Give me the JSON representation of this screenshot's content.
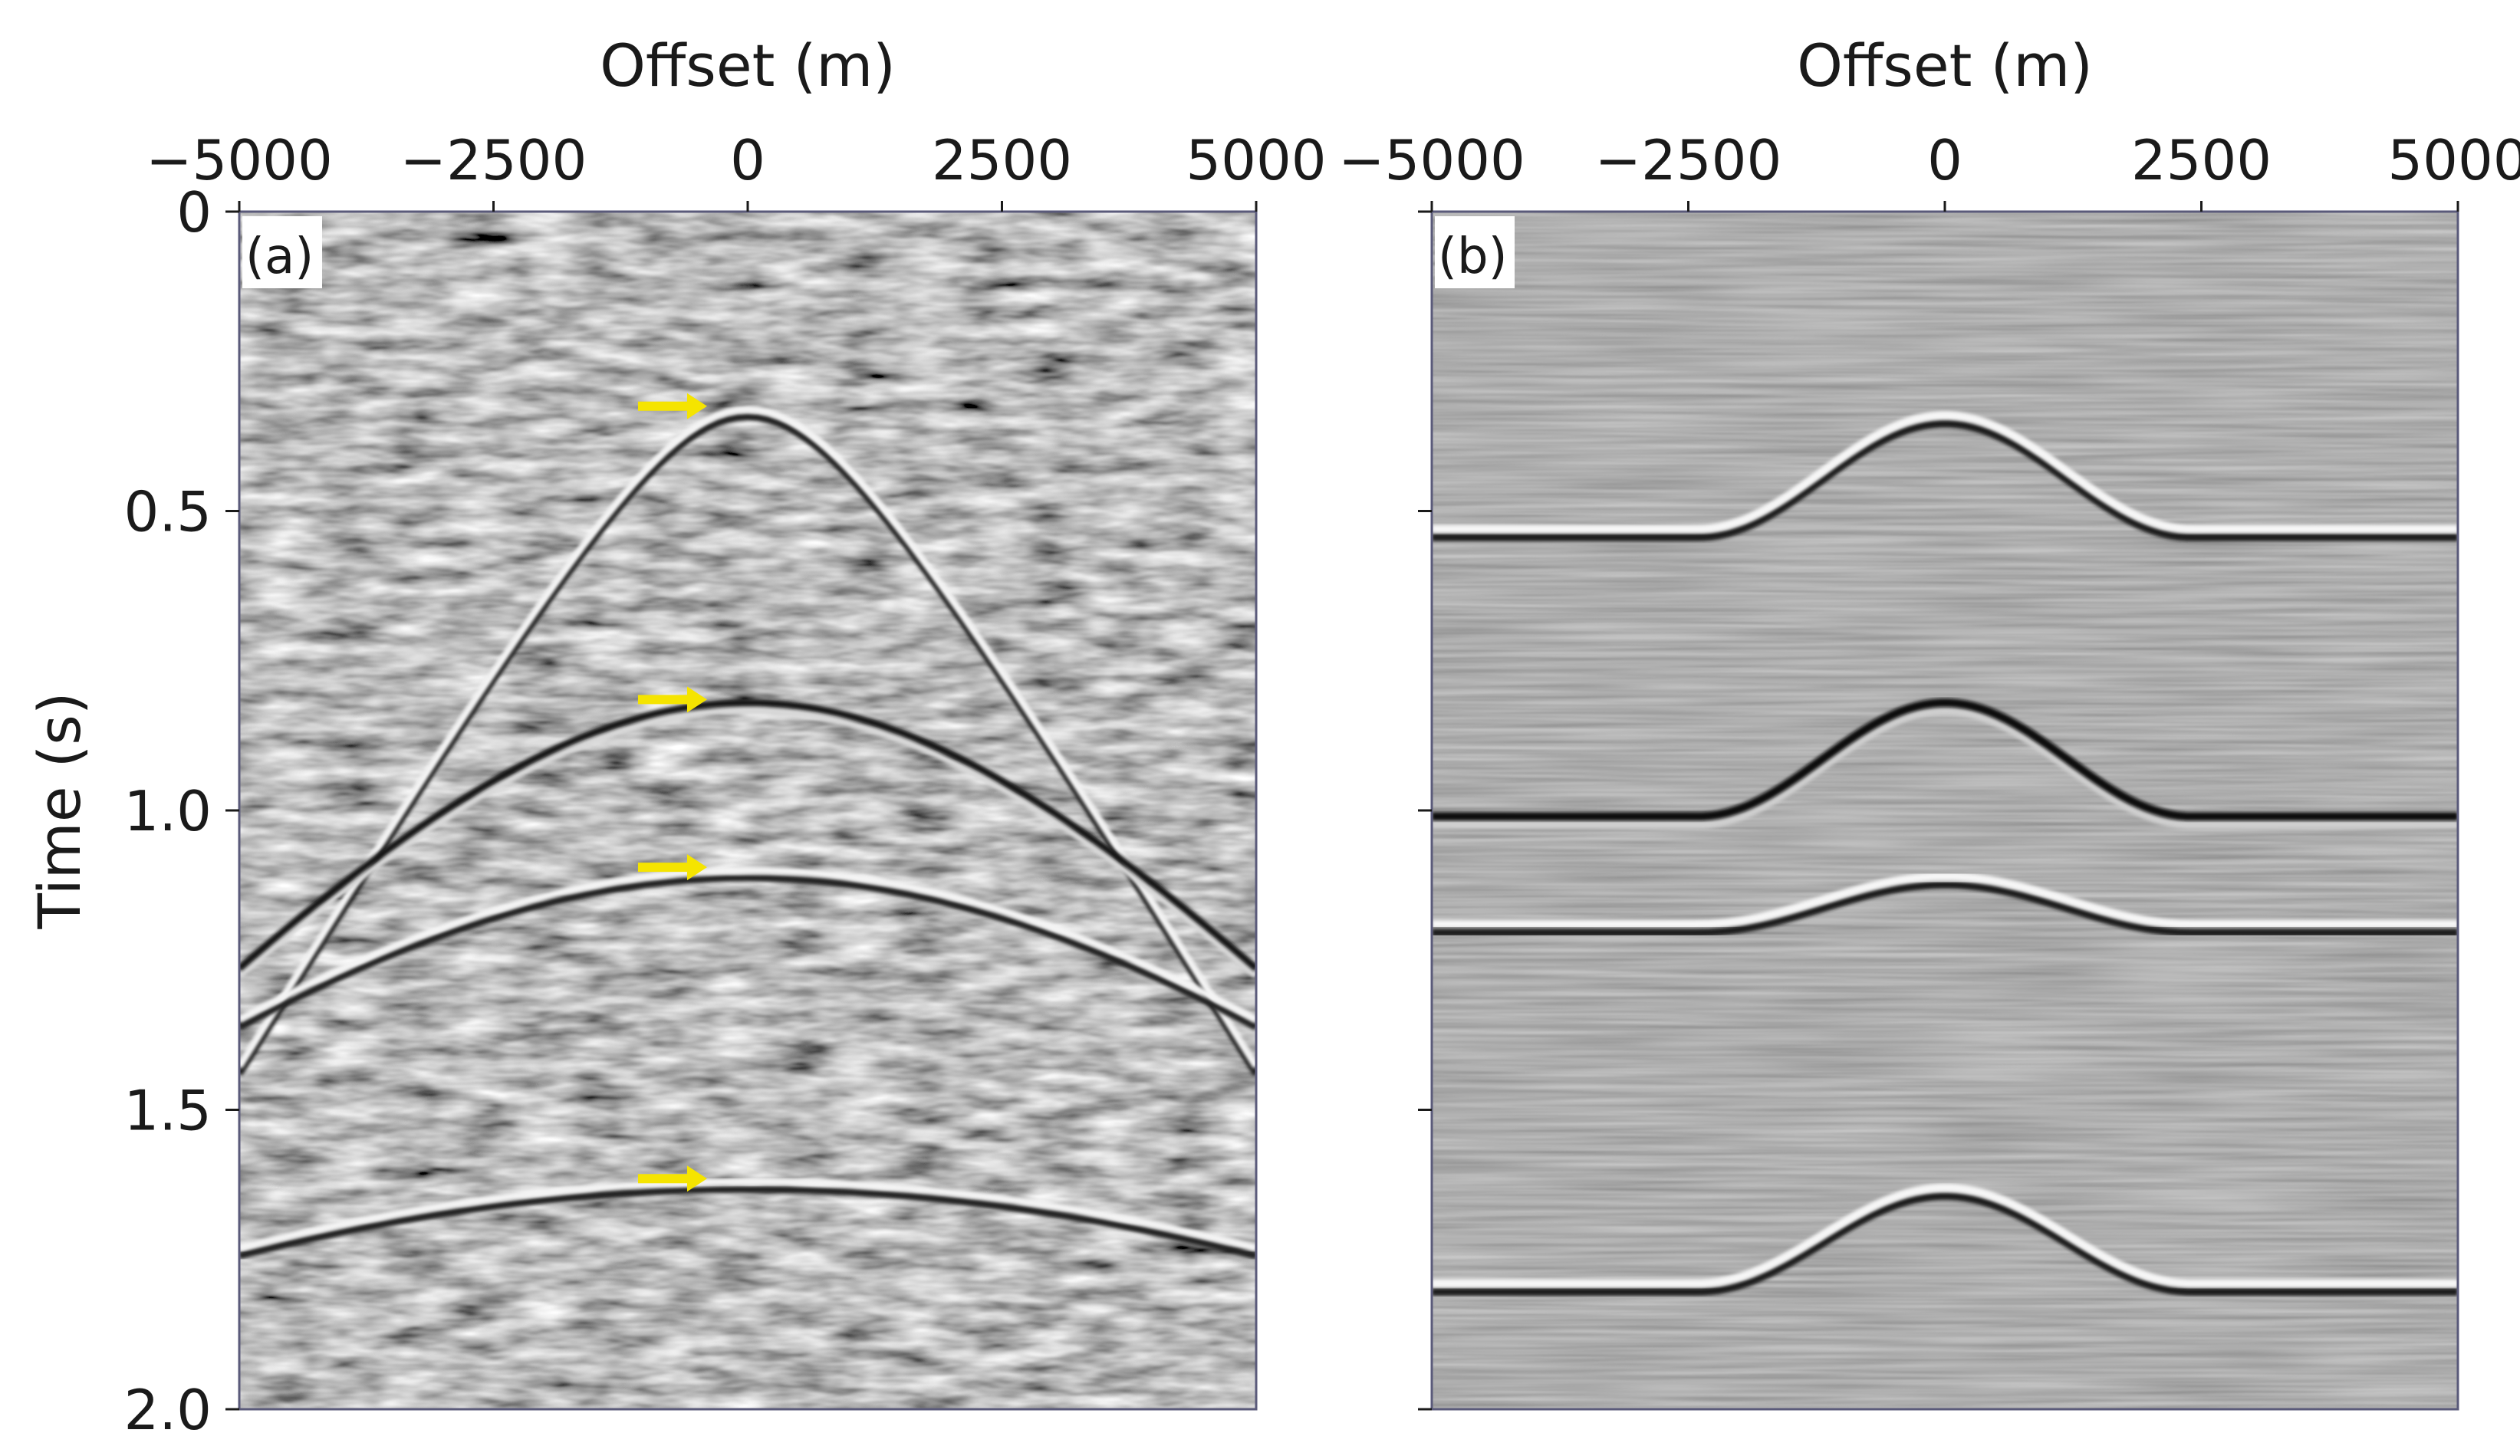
{
  "chart_data": [
    {
      "type": "heatmap",
      "panel_label": "(a)",
      "xlabel": "Offset (m)",
      "ylabel": "Time (s)",
      "x_axis_position": "top",
      "xlim": [
        -5000,
        5000
      ],
      "ylim": [
        0,
        2.0
      ],
      "y_inverted": true,
      "xticks": [
        -5000,
        -2500,
        0,
        2500,
        5000
      ],
      "xtick_labels": [
        "−5000",
        "−2500",
        "0",
        "2500",
        "5000"
      ],
      "yticks": [
        0,
        0.5,
        1.0,
        1.5,
        2.0
      ],
      "ytick_labels": [
        "0",
        "0.5",
        "1.0",
        "1.5",
        "2.0"
      ],
      "colormap": "grayscale",
      "arrow_color": "#f5e400",
      "events": [
        {
          "apex_offset": 0,
          "apex_time": 0.33,
          "kind": "hyperbola",
          "polarity": "bright",
          "arrow": true
        },
        {
          "apex_offset": 0,
          "apex_time": 0.82,
          "kind": "hyperbola",
          "polarity": "dark",
          "arrow": true
        },
        {
          "apex_offset": 0,
          "apex_time": 1.1,
          "kind": "hyperbola",
          "polarity": "bright",
          "arrow": true
        },
        {
          "apex_offset": 0,
          "apex_time": 1.62,
          "kind": "hyperbola",
          "polarity": "bright",
          "arrow": true
        }
      ]
    },
    {
      "type": "heatmap",
      "panel_label": "(b)",
      "xlabel": "Offset (m)",
      "ylabel": "",
      "x_axis_position": "top",
      "xlim": [
        -5000,
        5000
      ],
      "ylim": [
        0,
        2.0
      ],
      "y_inverted": true,
      "xticks": [
        -5000,
        -2500,
        0,
        2500,
        5000
      ],
      "xtick_labels": [
        "−5000",
        "−2500",
        "0",
        "2500",
        "5000"
      ],
      "yticks": [
        0,
        0.5,
        1.0,
        1.5,
        2.0
      ],
      "ytick_labels": [],
      "colormap": "grayscale",
      "events": [
        {
          "kind": "dome",
          "polarity": "bright",
          "apex_time": 0.34,
          "flank_time": 0.53,
          "flank_offset": 2400
        },
        {
          "kind": "dome",
          "polarity": "dark",
          "apex_time": 0.82,
          "flank_time": 1.01,
          "flank_offset": 2400
        },
        {
          "kind": "dome",
          "polarity": "bright",
          "apex_time": 1.11,
          "flank_time": 1.19,
          "flank_offset": 2400
        },
        {
          "kind": "dome",
          "polarity": "bright",
          "apex_time": 1.63,
          "flank_time": 1.79,
          "flank_offset": 2400
        }
      ]
    }
  ]
}
